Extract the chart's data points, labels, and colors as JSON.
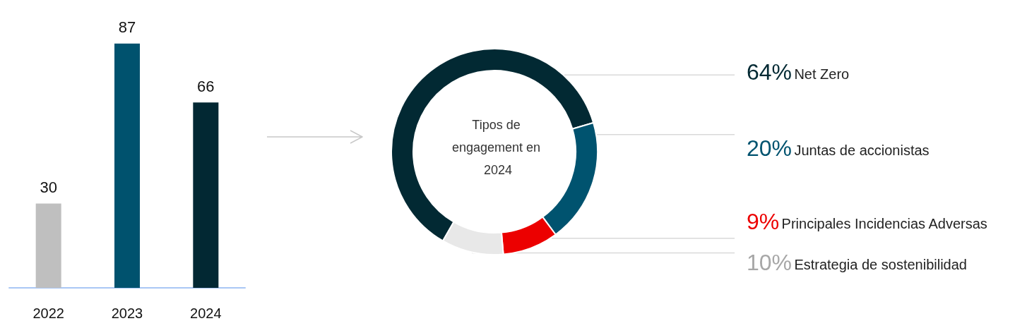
{
  "chart_data": [
    {
      "type": "bar",
      "categories": [
        "2022",
        "2023",
        "2024"
      ],
      "values": [
        30,
        87,
        66
      ],
      "colors": [
        "#bfbfbf",
        "#00526e",
        "#022833"
      ],
      "data_labels": true
    },
    {
      "type": "donut",
      "title": "Tipos de engagement en 2024",
      "categories": [
        "Net Zero",
        "Juntas de accionistas",
        "Principales Incidencias Adversas",
        "Estrategia de sostenibilidad"
      ],
      "values": [
        64,
        20,
        9,
        10
      ],
      "colors": [
        "#022933",
        "#00536f",
        "#ec0000",
        "#e8e8e8"
      ],
      "value_labels": [
        "64%",
        "20%",
        "9%",
        "10%"
      ]
    }
  ]
}
